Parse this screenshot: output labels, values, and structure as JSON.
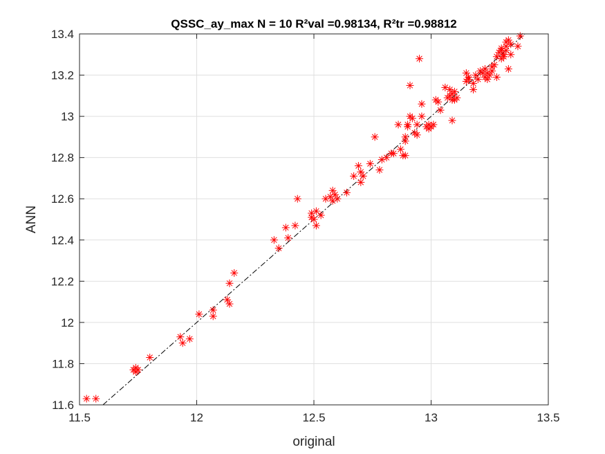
{
  "chart_data": {
    "type": "scatter",
    "title": "QSSC_ay_max  N = 10 R²val =0.98134, R²tr =0.98812",
    "xlabel": "original",
    "ylabel": "ANN",
    "xlim": [
      11.5,
      13.5
    ],
    "ylim": [
      11.6,
      13.4
    ],
    "xticks": [
      "11.5",
      "12",
      "12.5",
      "13",
      "13.5"
    ],
    "yticks": [
      "11.6",
      "11.8",
      "12",
      "12.2",
      "12.4",
      "12.6",
      "12.8",
      "13",
      "13.2",
      "13.4"
    ],
    "grid": true,
    "marker_color": "#ff0000",
    "marker": "asterisk",
    "fit_line": {
      "style": "dash-dot",
      "color": "#000000",
      "x": [
        11.5,
        13.5
      ],
      "y": [
        11.5,
        13.5
      ]
    },
    "series": [
      {
        "points": [
          [
            11.53,
            11.63
          ],
          [
            11.57,
            11.63
          ],
          [
            11.73,
            11.77
          ],
          [
            11.74,
            11.78
          ],
          [
            11.74,
            11.76
          ],
          [
            11.75,
            11.77
          ],
          [
            11.8,
            11.83
          ],
          [
            11.93,
            11.93
          ],
          [
            11.94,
            11.9
          ],
          [
            11.97,
            11.92
          ],
          [
            12.01,
            12.04
          ],
          [
            12.07,
            12.06
          ],
          [
            12.07,
            12.03
          ],
          [
            12.13,
            12.11
          ],
          [
            12.14,
            12.19
          ],
          [
            12.14,
            12.09
          ],
          [
            12.16,
            12.24
          ],
          [
            12.33,
            12.4
          ],
          [
            12.35,
            12.36
          ],
          [
            12.38,
            12.46
          ],
          [
            12.39,
            12.41
          ],
          [
            12.42,
            12.47
          ],
          [
            12.43,
            12.6
          ],
          [
            12.49,
            12.53
          ],
          [
            12.49,
            12.51
          ],
          [
            12.5,
            12.5
          ],
          [
            12.51,
            12.47
          ],
          [
            12.51,
            12.54
          ],
          [
            12.53,
            12.52
          ],
          [
            12.55,
            12.6
          ],
          [
            12.57,
            12.61
          ],
          [
            12.58,
            12.64
          ],
          [
            12.59,
            12.62
          ],
          [
            12.58,
            12.59
          ],
          [
            12.6,
            12.6
          ],
          [
            12.64,
            12.63
          ],
          [
            12.67,
            12.71
          ],
          [
            12.69,
            12.76
          ],
          [
            12.7,
            12.73
          ],
          [
            12.7,
            12.68
          ],
          [
            12.71,
            12.71
          ],
          [
            12.74,
            12.77
          ],
          [
            12.76,
            12.9
          ],
          [
            12.78,
            12.74
          ],
          [
            12.79,
            12.79
          ],
          [
            12.81,
            12.8
          ],
          [
            12.83,
            12.82
          ],
          [
            12.84,
            12.82
          ],
          [
            12.86,
            12.96
          ],
          [
            12.87,
            12.84
          ],
          [
            12.88,
            12.81
          ],
          [
            12.89,
            12.9
          ],
          [
            12.89,
            12.81
          ],
          [
            12.89,
            12.88
          ],
          [
            12.9,
            12.96
          ],
          [
            12.9,
            12.95
          ],
          [
            12.91,
            13.0
          ],
          [
            12.91,
            13.15
          ],
          [
            12.92,
            12.99
          ],
          [
            12.93,
            12.92
          ],
          [
            12.94,
            12.96
          ],
          [
            12.94,
            12.91
          ],
          [
            12.95,
            13.28
          ],
          [
            12.96,
            13.06
          ],
          [
            12.96,
            13.0
          ],
          [
            12.98,
            12.95
          ],
          [
            12.99,
            12.94
          ],
          [
            12.99,
            12.96
          ],
          [
            13.0,
            12.95
          ],
          [
            13.01,
            12.96
          ],
          [
            13.02,
            13.08
          ],
          [
            13.03,
            13.07
          ],
          [
            13.04,
            13.03
          ],
          [
            13.06,
            13.14
          ],
          [
            13.07,
            13.09
          ],
          [
            13.08,
            13.1
          ],
          [
            13.08,
            13.13
          ],
          [
            13.09,
            13.08
          ],
          [
            13.09,
            13.11
          ],
          [
            13.09,
            12.98
          ],
          [
            13.1,
            13.12
          ],
          [
            13.1,
            13.08
          ],
          [
            13.11,
            13.09
          ],
          [
            13.15,
            13.17
          ],
          [
            13.15,
            13.21
          ],
          [
            13.16,
            13.18
          ],
          [
            13.16,
            13.19
          ],
          [
            13.18,
            13.13
          ],
          [
            13.18,
            13.16
          ],
          [
            13.19,
            13.2
          ],
          [
            13.2,
            13.18
          ],
          [
            13.21,
            13.22
          ],
          [
            13.22,
            13.21
          ],
          [
            13.23,
            13.19
          ],
          [
            13.23,
            13.23
          ],
          [
            13.24,
            13.21
          ],
          [
            13.24,
            13.18
          ],
          [
            13.25,
            13.2
          ],
          [
            13.26,
            13.22
          ],
          [
            13.26,
            13.24
          ],
          [
            13.27,
            13.25
          ],
          [
            13.28,
            13.29
          ],
          [
            13.28,
            13.19
          ],
          [
            13.29,
            13.31
          ],
          [
            13.3,
            13.28
          ],
          [
            13.3,
            13.32
          ],
          [
            13.3,
            13.33
          ],
          [
            13.31,
            13.3
          ],
          [
            13.31,
            13.29
          ],
          [
            13.32,
            13.34
          ],
          [
            13.32,
            13.36
          ],
          [
            13.32,
            13.32
          ],
          [
            13.33,
            13.37
          ],
          [
            13.33,
            13.23
          ],
          [
            13.34,
            13.35
          ],
          [
            13.34,
            13.3
          ],
          [
            13.37,
            13.34
          ],
          [
            13.38,
            13.39
          ]
        ]
      }
    ]
  }
}
